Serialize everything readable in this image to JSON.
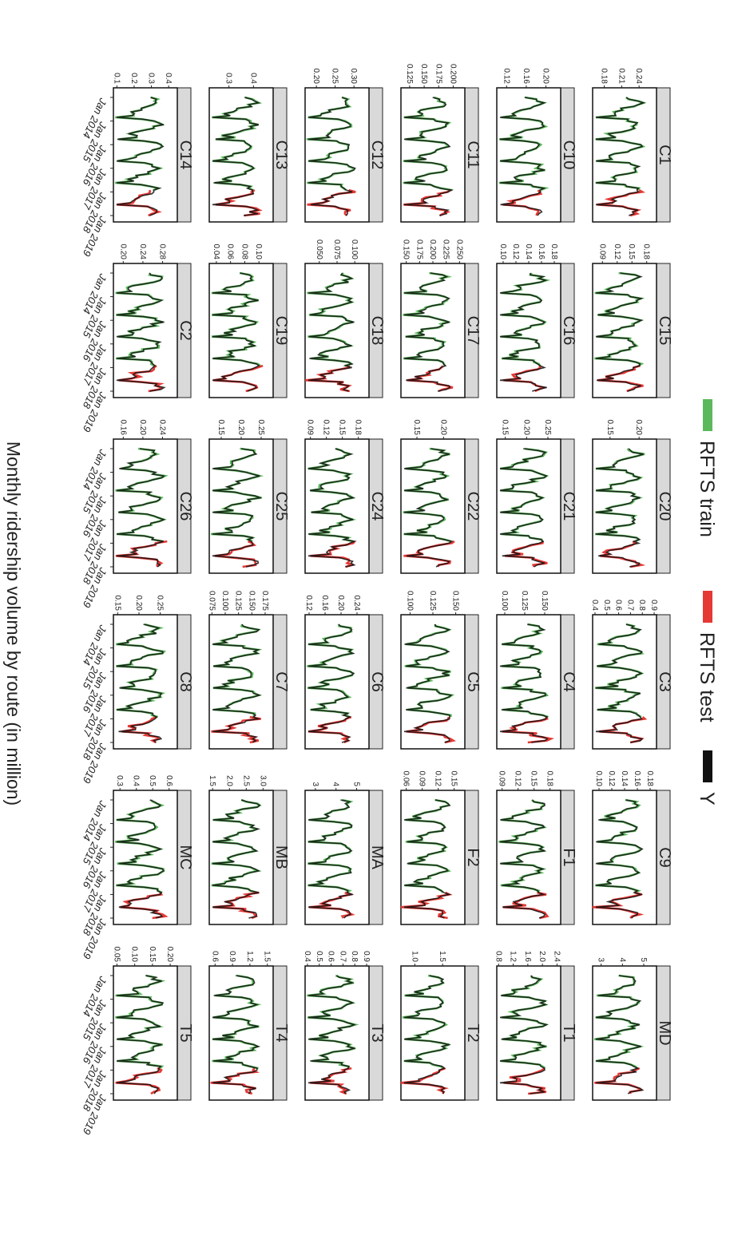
{
  "figure": {
    "ylabel": "Monthly ridership volume by route (in million)",
    "xticks": [
      "Jan 2014",
      "Jan 2015",
      "Jan 2016",
      "Jan 2017",
      "Jan 2018",
      "Jan 2019"
    ],
    "legend": [
      {
        "label": "RFTS train",
        "color": "#5cb85c"
      },
      {
        "label": "RFTS test",
        "color": "#e53935"
      },
      {
        "label": "Y",
        "color": "#111111"
      }
    ]
  },
  "chart_data": {
    "type": "line",
    "x_axis": "monthly",
    "x_ticks": [
      "Jan 2014",
      "Jan 2015",
      "Jan 2016",
      "Jan 2017",
      "Jan 2018",
      "Jan 2019"
    ],
    "series_names": [
      "RFTS train",
      "RFTS test",
      "Y"
    ],
    "panels": [
      {
        "route": "C1",
        "yticks": [
          "0.24",
          "0.21",
          "0.18"
        ],
        "ylim": [
          0.16,
          0.27
        ]
      },
      {
        "route": "C10",
        "yticks": [
          "0.20",
          "0.16",
          "0.12"
        ],
        "ylim": [
          0.1,
          0.23
        ]
      },
      {
        "route": "C11",
        "yticks": [
          "0.200",
          "0.175",
          "0.150",
          "0.125"
        ],
        "ylim": [
          0.11,
          0.22
        ]
      },
      {
        "route": "C12",
        "yticks": [
          "0.30",
          "0.25",
          "0.20"
        ],
        "ylim": [
          0.17,
          0.34
        ]
      },
      {
        "route": "C13",
        "yticks": [
          "0.4",
          "0.3"
        ],
        "ylim": [
          0.22,
          0.48
        ]
      },
      {
        "route": "C14",
        "yticks": [
          "0.4",
          "0.3",
          "0.2",
          "0.1"
        ],
        "ylim": [
          0.08,
          0.45
        ]
      },
      {
        "route": "C15",
        "yticks": [
          "0.18",
          "0.15",
          "0.12",
          "0.09"
        ],
        "ylim": [
          0.07,
          0.2
        ]
      },
      {
        "route": "C16",
        "yticks": [
          "0.18",
          "0.16",
          "0.14",
          "0.12",
          "0.10"
        ],
        "ylim": [
          0.09,
          0.19
        ]
      },
      {
        "route": "C17",
        "yticks": [
          "0.250",
          "0.225",
          "0.200",
          "0.175",
          "0.150"
        ],
        "ylim": [
          0.14,
          0.26
        ]
      },
      {
        "route": "C18",
        "yticks": [
          "0.100",
          "0.075",
          "0.050"
        ],
        "ylim": [
          0.03,
          0.12
        ]
      },
      {
        "route": "C19",
        "yticks": [
          "0.10",
          "0.08",
          "0.06",
          "0.04"
        ],
        "ylim": [
          0.03,
          0.12
        ]
      },
      {
        "route": "C2",
        "yticks": [
          "0.28",
          "0.24",
          "0.20"
        ],
        "ylim": [
          0.18,
          0.31
        ]
      },
      {
        "route": "C20",
        "yticks": [
          "0.20",
          "0.15"
        ],
        "ylim": [
          0.12,
          0.23
        ]
      },
      {
        "route": "C21",
        "yticks": [
          "0.25",
          "0.20",
          "0.15"
        ],
        "ylim": [
          0.13,
          0.28
        ]
      },
      {
        "route": "C22",
        "yticks": [
          "0.20",
          "0.15"
        ],
        "ylim": [
          0.12,
          0.24
        ]
      },
      {
        "route": "C24",
        "yticks": [
          "0.18",
          "0.15",
          "0.12",
          "0.09"
        ],
        "ylim": [
          0.08,
          0.2
        ]
      },
      {
        "route": "C25",
        "yticks": [
          "0.25",
          "0.20",
          "0.15"
        ],
        "ylim": [
          0.12,
          0.28
        ]
      },
      {
        "route": "C26",
        "yticks": [
          "0.24",
          "0.20",
          "0.16"
        ],
        "ylim": [
          0.14,
          0.27
        ]
      },
      {
        "route": "C3",
        "yticks": [
          "0.9",
          "0.8",
          "0.7",
          "0.6",
          "0.5",
          "0.4"
        ],
        "ylim": [
          0.38,
          0.92
        ]
      },
      {
        "route": "C4",
        "yticks": [
          "0.150",
          "0.125",
          "0.100"
        ],
        "ylim": [
          0.09,
          0.17
        ]
      },
      {
        "route": "C5",
        "yticks": [
          "0.150",
          "0.125",
          "0.100"
        ],
        "ylim": [
          0.09,
          0.16
        ]
      },
      {
        "route": "C6",
        "yticks": [
          "0.24",
          "0.20",
          "0.16",
          "0.12"
        ],
        "ylim": [
          0.11,
          0.27
        ]
      },
      {
        "route": "C7",
        "yticks": [
          "0.175",
          "0.150",
          "0.125",
          "0.100",
          "0.075"
        ],
        "ylim": [
          0.07,
          0.19
        ]
      },
      {
        "route": "C8",
        "yticks": [
          "0.25",
          "0.20",
          "0.15"
        ],
        "ylim": [
          0.14,
          0.29
        ]
      },
      {
        "route": "C9",
        "yticks": [
          "0.18",
          "0.16",
          "0.14",
          "0.12",
          "0.10"
        ],
        "ylim": [
          0.09,
          0.19
        ]
      },
      {
        "route": "F1",
        "yticks": [
          "0.18",
          "0.15",
          "0.12",
          "0.09"
        ],
        "ylim": [
          0.08,
          0.2
        ]
      },
      {
        "route": "F2",
        "yticks": [
          "0.15",
          "0.12",
          "0.09",
          "0.06"
        ],
        "ylim": [
          0.05,
          0.17
        ]
      },
      {
        "route": "MA",
        "yticks": [
          "5",
          "4",
          "3"
        ],
        "ylim": [
          2.5,
          5.6
        ]
      },
      {
        "route": "MB",
        "yticks": [
          "3.0",
          "2.5",
          "2.0",
          "1.5"
        ],
        "ylim": [
          1.4,
          3.3
        ]
      },
      {
        "route": "MC",
        "yticks": [
          "0.6",
          "0.5",
          "0.4",
          "0.3"
        ],
        "ylim": [
          0.26,
          0.65
        ]
      },
      {
        "route": "MD",
        "yticks": [
          "5",
          "4",
          "3"
        ],
        "ylim": [
          2.6,
          5.6
        ]
      },
      {
        "route": "T1",
        "yticks": [
          "2.4",
          "2.0",
          "1.6",
          "1.2",
          "0.8"
        ],
        "ylim": [
          0.75,
          2.5
        ]
      },
      {
        "route": "T2",
        "yticks": [
          "1.5",
          "1.0"
        ],
        "ylim": [
          0.75,
          1.9
        ]
      },
      {
        "route": "T3",
        "yticks": [
          "0.9",
          "0.8",
          "0.7",
          "0.6",
          "0.5",
          "0.4"
        ],
        "ylim": [
          0.38,
          0.92
        ]
      },
      {
        "route": "T4",
        "yticks": [
          "1.5",
          "1.2",
          "0.9",
          "0.6"
        ],
        "ylim": [
          0.5,
          1.6
        ]
      },
      {
        "route": "T5",
        "yticks": [
          "0.20",
          "0.15",
          "0.10",
          "0.05"
        ],
        "ylim": [
          0.04,
          0.22
        ]
      }
    ]
  }
}
